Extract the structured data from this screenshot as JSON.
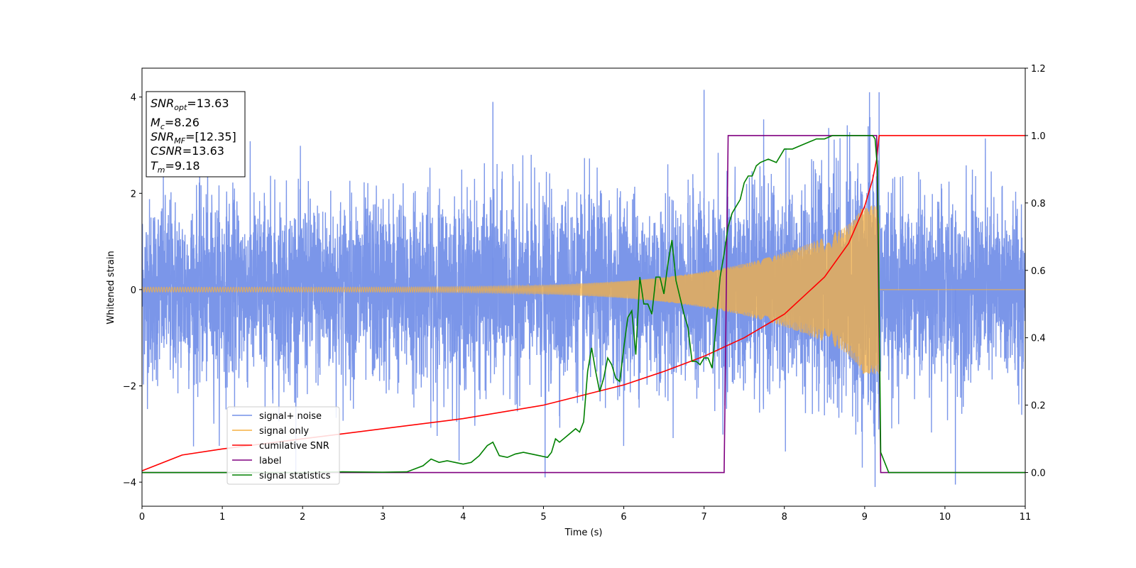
{
  "chart_data": {
    "type": "line",
    "xlabel": "Time (s)",
    "ylabel": "Whitened strain",
    "xlim": [
      0,
      11
    ],
    "ylim": [
      -4.5,
      4.6
    ],
    "y2lim": [
      -0.1,
      1.2
    ],
    "xticks": [
      "0",
      "1",
      "2",
      "3",
      "4",
      "5",
      "6",
      "7",
      "8",
      "9",
      "10",
      "11"
    ],
    "yticks": [
      "−4",
      "−2",
      "0",
      "2",
      "4"
    ],
    "y2ticks": [
      "0.0",
      "0.2",
      "0.4",
      "0.6",
      "0.8",
      "1.0",
      "1.2"
    ],
    "legend_position": "lower-left",
    "info_box": {
      "snr_opt": "=13.63",
      "mc": "=8.26",
      "snr_mf": "=[12.35]",
      "csnr": "=13.63",
      "tm": "=9.18"
    },
    "series": [
      {
        "name": "signal+ noise",
        "axis": "left",
        "color": "#7490e8",
        "noise_std": 0.95,
        "notable_peaks": [
          [
            7.0,
            4.15
          ],
          [
            9.18,
            4.1
          ],
          [
            4.37,
            3.9
          ],
          [
            9.13,
            -4.1
          ],
          [
            10.13,
            -4.05
          ],
          [
            5.02,
            -3.9
          ]
        ]
      },
      {
        "name": "signal only",
        "axis": "left",
        "color": "#f5b041",
        "chirp_start": 0.0,
        "chirp_end": 9.18,
        "amplitude_start": 0.05,
        "amplitude_end": 1.7
      },
      {
        "name": "cumilative SNR",
        "axis": "right",
        "color": "#ff0000",
        "x": [
          0,
          0.5,
          1,
          2,
          3,
          4,
          5,
          6,
          6.5,
          7,
          7.5,
          8,
          8.5,
          8.8,
          9.0,
          9.1,
          9.15,
          9.18,
          11
        ],
        "values": [
          0.005,
          0.052,
          0.07,
          0.1,
          0.13,
          0.16,
          0.2,
          0.26,
          0.3,
          0.345,
          0.4,
          0.47,
          0.58,
          0.68,
          0.79,
          0.87,
          0.93,
          1.0,
          1.0
        ]
      },
      {
        "name": "label",
        "axis": "right",
        "color": "#800080",
        "x": [
          0,
          7.25,
          7.3,
          9.15,
          9.2,
          11
        ],
        "values": [
          0,
          0,
          1,
          1,
          0,
          0
        ]
      },
      {
        "name": "signal statistics",
        "axis": "right",
        "color": "#008000",
        "x": [
          0,
          1,
          2,
          2.5,
          3,
          3.3,
          3.5,
          3.6,
          3.7,
          3.8,
          3.9,
          4.0,
          4.1,
          4.2,
          4.3,
          4.37,
          4.45,
          4.55,
          4.65,
          4.75,
          4.85,
          4.95,
          5.05,
          5.1,
          5.15,
          5.2,
          5.3,
          5.4,
          5.45,
          5.5,
          5.55,
          5.6,
          5.65,
          5.7,
          5.75,
          5.8,
          5.85,
          5.9,
          5.95,
          6.0,
          6.05,
          6.1,
          6.15,
          6.2,
          6.25,
          6.3,
          6.35,
          6.4,
          6.45,
          6.5,
          6.55,
          6.6,
          6.65,
          6.7,
          6.75,
          6.8,
          6.85,
          6.9,
          6.95,
          7.0,
          7.05,
          7.1,
          7.15,
          7.2,
          7.25,
          7.3,
          7.35,
          7.4,
          7.45,
          7.5,
          7.55,
          7.6,
          7.65,
          7.7,
          7.8,
          7.9,
          8.0,
          8.1,
          8.2,
          8.3,
          8.4,
          8.5,
          8.6,
          8.7,
          8.8,
          8.9,
          9.0,
          9.05,
          9.1,
          9.13,
          9.16,
          9.18,
          9.2,
          9.3,
          9.5,
          10,
          11
        ],
        "values": [
          0,
          0,
          0,
          0.002,
          0.001,
          0.002,
          0.02,
          0.04,
          0.03,
          0.035,
          0.03,
          0.025,
          0.03,
          0.05,
          0.08,
          0.09,
          0.05,
          0.045,
          0.055,
          0.06,
          0.055,
          0.05,
          0.045,
          0.06,
          0.1,
          0.09,
          0.11,
          0.13,
          0.12,
          0.15,
          0.3,
          0.37,
          0.3,
          0.24,
          0.28,
          0.34,
          0.32,
          0.28,
          0.27,
          0.37,
          0.46,
          0.48,
          0.35,
          0.58,
          0.5,
          0.5,
          0.47,
          0.58,
          0.58,
          0.53,
          0.62,
          0.69,
          0.57,
          0.52,
          0.47,
          0.43,
          0.33,
          0.33,
          0.32,
          0.34,
          0.34,
          0.31,
          0.44,
          0.58,
          0.65,
          0.73,
          0.77,
          0.79,
          0.81,
          0.86,
          0.88,
          0.88,
          0.91,
          0.92,
          0.93,
          0.92,
          0.96,
          0.96,
          0.97,
          0.98,
          0.99,
          0.99,
          1.0,
          1.0,
          1.0,
          1.0,
          1.0,
          1.0,
          1.0,
          0.99,
          0.9,
          0.5,
          0.06,
          0.0,
          0.0,
          0.0,
          0.0
        ]
      }
    ]
  }
}
